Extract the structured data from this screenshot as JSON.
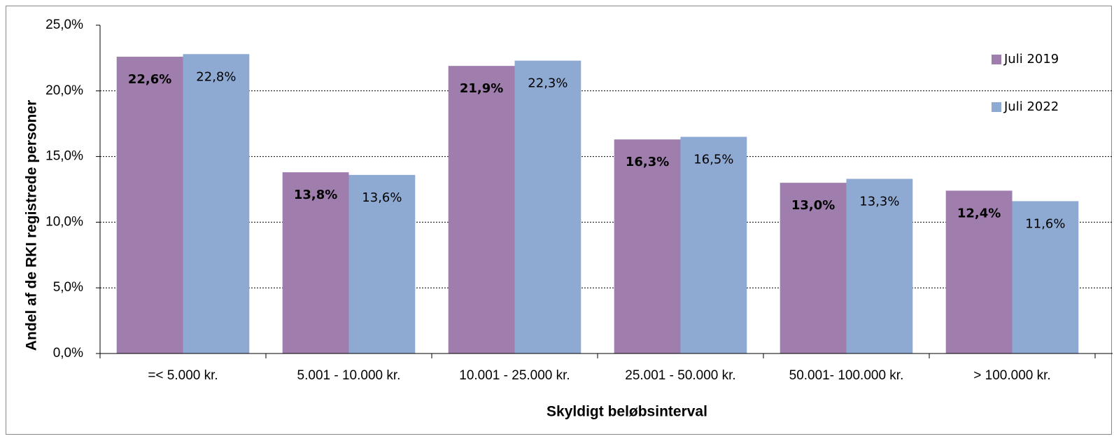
{
  "chart_data": {
    "type": "bar",
    "categories": [
      "=< 5.000 kr.",
      "5.001 - 10.000 kr.",
      "10.001 - 25.000 kr.",
      "25.001 - 50.000 kr.",
      "50.001- 100.000 kr.",
      "> 100.000 kr."
    ],
    "series": [
      {
        "name": "Juli 2019",
        "color": "#9f7dac",
        "values": [
          22.6,
          13.8,
          21.9,
          16.3,
          13.0,
          12.4
        ],
        "value_labels": [
          "22,6%",
          "13,8%",
          "21,9%",
          "16,3%",
          "13,0%",
          "12,4%"
        ]
      },
      {
        "name": "Juli 2022",
        "color": "#8eaad3",
        "values": [
          22.8,
          13.6,
          22.3,
          16.5,
          13.3,
          11.6
        ],
        "value_labels": [
          "22,8%",
          "13,6%",
          "22,3%",
          "16,5%",
          "13,3%",
          "11,6%"
        ]
      }
    ],
    "x_label": "Skyldigt beløbsinterval",
    "y_label": "Andel af de RKI registrede personer",
    "ylim": [
      0,
      25
    ],
    "yticks": [
      {
        "value": 0,
        "label": "0,0%"
      },
      {
        "value": 5,
        "label": "5,0%"
      },
      {
        "value": 10,
        "label": "10,0%"
      },
      {
        "value": 15,
        "label": "15,0%"
      },
      {
        "value": 20,
        "label": "20,0%"
      },
      {
        "value": 25,
        "label": "25,0%"
      }
    ],
    "grid": true,
    "legend": "right"
  }
}
